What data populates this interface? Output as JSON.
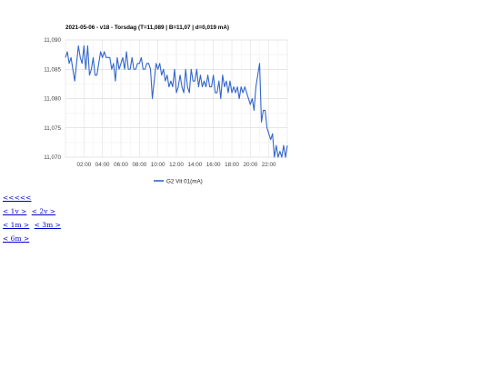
{
  "chart_data": {
    "type": "line",
    "title": "2021-05-06 - v18 - Torsdag (T=11,089 | B=11,07 | d=0,019 mA)",
    "xlabel": "",
    "ylabel": "",
    "x_tick_labels": [
      "02:00",
      "04:00",
      "06:00",
      "08:00",
      "10:00",
      "12:00",
      "14:00",
      "16:00",
      "18:00",
      "20:00",
      "22:00"
    ],
    "y_tick_labels": [
      "11,090",
      "11,085",
      "11,080",
      "11,075",
      "11,070"
    ],
    "ylim": [
      11.07,
      11.09
    ],
    "xlim_hours": [
      0.0,
      24.0
    ],
    "grid": true,
    "legend_position": "bottom",
    "series": [
      {
        "name": "G2 Vit 01(mA)",
        "color": "#3366cc",
        "x": [
          0.0,
          0.2,
          0.4,
          0.6,
          0.8,
          1.0,
          1.2,
          1.4,
          1.6,
          1.8,
          2.0,
          2.2,
          2.4,
          2.6,
          2.8,
          3.0,
          3.2,
          3.4,
          3.6,
          3.8,
          4.0,
          4.2,
          4.4,
          4.6,
          4.8,
          5.0,
          5.2,
          5.4,
          5.6,
          5.8,
          6.0,
          6.2,
          6.4,
          6.6,
          6.8,
          7.0,
          7.2,
          7.4,
          7.6,
          7.8,
          8.0,
          8.2,
          8.4,
          8.6,
          8.8,
          9.0,
          9.2,
          9.4,
          9.6,
          9.8,
          10.0,
          10.2,
          10.4,
          10.6,
          10.8,
          11.0,
          11.2,
          11.4,
          11.6,
          11.8,
          12.0,
          12.2,
          12.4,
          12.6,
          12.8,
          13.0,
          13.2,
          13.4,
          13.6,
          13.8,
          14.0,
          14.2,
          14.4,
          14.6,
          14.8,
          15.0,
          15.2,
          15.4,
          15.6,
          15.8,
          16.0,
          16.2,
          16.4,
          16.6,
          16.8,
          17.0,
          17.2,
          17.4,
          17.6,
          17.8,
          18.0,
          18.2,
          18.4,
          18.6,
          18.8,
          19.0,
          19.2,
          19.4,
          19.6,
          19.8,
          20.0,
          20.2,
          20.4,
          20.6,
          20.8,
          21.0,
          21.2,
          21.4,
          21.6,
          21.8,
          22.0,
          22.2,
          22.4,
          22.6,
          22.8,
          23.0,
          23.2,
          23.4,
          23.6,
          23.8,
          24.0
        ],
        "values": [
          11.087,
          11.088,
          11.086,
          11.087,
          11.085,
          11.083,
          11.086,
          11.089,
          11.087,
          11.086,
          11.089,
          11.085,
          11.089,
          11.084,
          11.085,
          11.087,
          11.084,
          11.084,
          11.086,
          11.088,
          11.087,
          11.088,
          11.087,
          11.087,
          11.087,
          11.085,
          11.086,
          11.083,
          11.087,
          11.085,
          11.086,
          11.087,
          11.085,
          11.088,
          11.085,
          11.085,
          11.087,
          11.085,
          11.085,
          11.086,
          11.086,
          11.087,
          11.085,
          11.085,
          11.086,
          11.086,
          11.085,
          11.08,
          11.083,
          11.086,
          11.085,
          11.086,
          11.084,
          11.085,
          11.083,
          11.084,
          11.082,
          11.083,
          11.082,
          11.085,
          11.081,
          11.082,
          11.084,
          11.082,
          11.081,
          11.085,
          11.082,
          11.081,
          11.085,
          11.083,
          11.083,
          11.085,
          11.082,
          11.084,
          11.082,
          11.083,
          11.082,
          11.084,
          11.082,
          11.082,
          11.084,
          11.081,
          11.081,
          11.083,
          11.08,
          11.084,
          11.082,
          11.083,
          11.081,
          11.083,
          11.081,
          11.082,
          11.081,
          11.082,
          11.08,
          11.082,
          11.081,
          11.082,
          11.081,
          11.08,
          11.079,
          11.08,
          11.078,
          11.082,
          11.084,
          11.086,
          11.076,
          11.078,
          11.078,
          11.075,
          11.074,
          11.073,
          11.074,
          11.07,
          11.072,
          11.07,
          11.071,
          11.07,
          11.072,
          11.07,
          11.072
        ]
      }
    ]
  },
  "nav": {
    "all": "<<<<<",
    "week1": "< 1v >",
    "week2": "< 2v >",
    "month1": "< 1m >",
    "month3": "< 3m >",
    "month6": "< 6m >"
  }
}
